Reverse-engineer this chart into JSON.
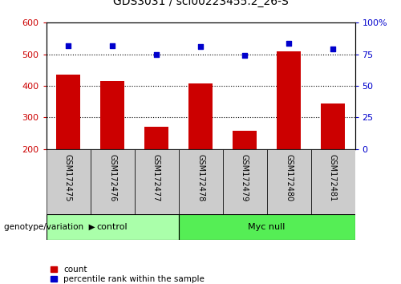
{
  "title": "GDS3031 / scl00223455.2_26-S",
  "samples": [
    "GSM172475",
    "GSM172476",
    "GSM172477",
    "GSM172478",
    "GSM172479",
    "GSM172480",
    "GSM172481"
  ],
  "counts": [
    435,
    415,
    270,
    407,
    258,
    510,
    345
  ],
  "percentile_ranks": [
    82,
    82,
    75,
    81,
    74,
    84,
    79
  ],
  "ylim_left": [
    200,
    600
  ],
  "ylim_right": [
    0,
    100
  ],
  "yticks_left": [
    200,
    300,
    400,
    500,
    600
  ],
  "yticks_right": [
    0,
    25,
    50,
    75,
    100
  ],
  "ytick_labels_right": [
    "0",
    "25",
    "50",
    "75",
    "100%"
  ],
  "bar_color": "#cc0000",
  "dot_color": "#0000cc",
  "groups": [
    {
      "label": "control",
      "start": 0,
      "end": 3
    },
    {
      "label": "Myc null",
      "start": 3,
      "end": 7
    }
  ],
  "group_colors": [
    "#aaffaa",
    "#55ee55"
  ],
  "genotype_label": "genotype/variation",
  "legend_count_label": "count",
  "legend_pct_label": "percentile rank within the sample",
  "label_bg_color": "#cccccc",
  "hgrid_values": [
    300,
    400,
    500
  ]
}
